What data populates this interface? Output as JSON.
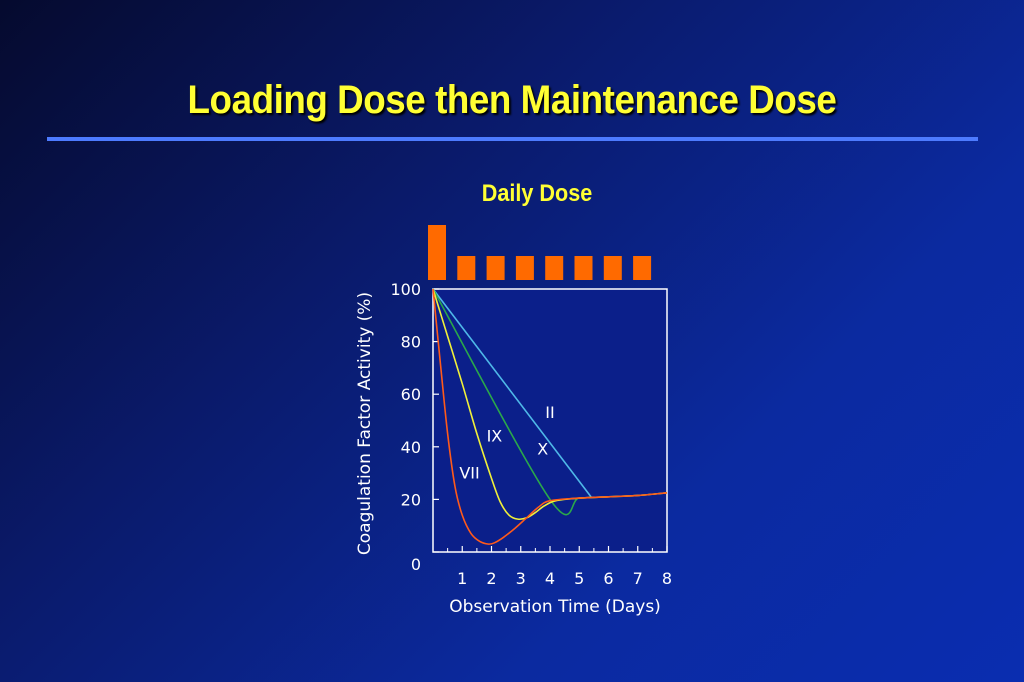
{
  "slide": {
    "title": "Loading Dose then Maintenance Dose"
  },
  "colors": {
    "title": "#ffff33",
    "rule": "#4d7bff",
    "dose_bar": "#ff6a00",
    "plot_background": "#0b1f8a"
  },
  "chart_data": {
    "type": "line",
    "title": "Daily Dose",
    "xlabel": "Observation Time (Days)",
    "ylabel": "Coagulation Factor Activity (%)",
    "xlim": [
      0,
      8
    ],
    "ylim": [
      0,
      100
    ],
    "xticks": [
      1,
      2,
      3,
      4,
      5,
      6,
      7,
      8
    ],
    "yticks": [
      0,
      20,
      40,
      60,
      80,
      100
    ],
    "grid": false,
    "dose_schedule": {
      "description": "Daily dose bars",
      "days": [
        0,
        1,
        2,
        3,
        4,
        5,
        6,
        7
      ],
      "relative_dose": [
        2,
        1,
        1,
        1,
        1,
        1,
        1,
        1
      ]
    },
    "series": [
      {
        "name": "VII",
        "color": "#ff5a1a",
        "points": [
          [
            0,
            100
          ],
          [
            0.25,
            72
          ],
          [
            0.5,
            45
          ],
          [
            0.75,
            25
          ],
          [
            1.0,
            14
          ],
          [
            1.3,
            7
          ],
          [
            1.6,
            4
          ],
          [
            1.9,
            3
          ],
          [
            2.1,
            3.5
          ],
          [
            2.4,
            5.5
          ],
          [
            2.8,
            9
          ],
          [
            3.2,
            13
          ],
          [
            3.6,
            17
          ],
          [
            4.0,
            19.5
          ],
          [
            5.0,
            20.5
          ],
          [
            6.0,
            21
          ],
          [
            7.0,
            21.5
          ],
          [
            8.0,
            22.5
          ]
        ]
      },
      {
        "name": "IX",
        "color": "#f0f03a",
        "points": [
          [
            0,
            100
          ],
          [
            0.5,
            82
          ],
          [
            1.0,
            64
          ],
          [
            1.5,
            45
          ],
          [
            2.0,
            28
          ],
          [
            2.3,
            19
          ],
          [
            2.6,
            14
          ],
          [
            2.9,
            12.5
          ],
          [
            3.2,
            13
          ],
          [
            3.5,
            15
          ],
          [
            3.8,
            17.5
          ],
          [
            4.2,
            19.5
          ],
          [
            5.0,
            20.5
          ],
          [
            6.0,
            21
          ],
          [
            7.0,
            21.5
          ],
          [
            8.0,
            22.5
          ]
        ]
      },
      {
        "name": "X",
        "color": "#2aa84a",
        "points": [
          [
            0,
            100
          ],
          [
            4.0,
            20
          ],
          [
            5.0,
            20.5
          ],
          [
            6.0,
            21
          ],
          [
            7.0,
            21.5
          ],
          [
            8.0,
            22.5
          ]
        ]
      },
      {
        "name": "II",
        "color": "#4fb8e8",
        "points": [
          [
            0,
            100
          ],
          [
            5.4,
            21
          ]
        ]
      }
    ],
    "annotations": [
      {
        "text": "II",
        "x": 4.0,
        "y": 51
      },
      {
        "text": "IX",
        "x": 2.1,
        "y": 42
      },
      {
        "text": "X",
        "x": 3.75,
        "y": 37
      },
      {
        "text": "VII",
        "x": 1.25,
        "y": 28
      }
    ]
  }
}
